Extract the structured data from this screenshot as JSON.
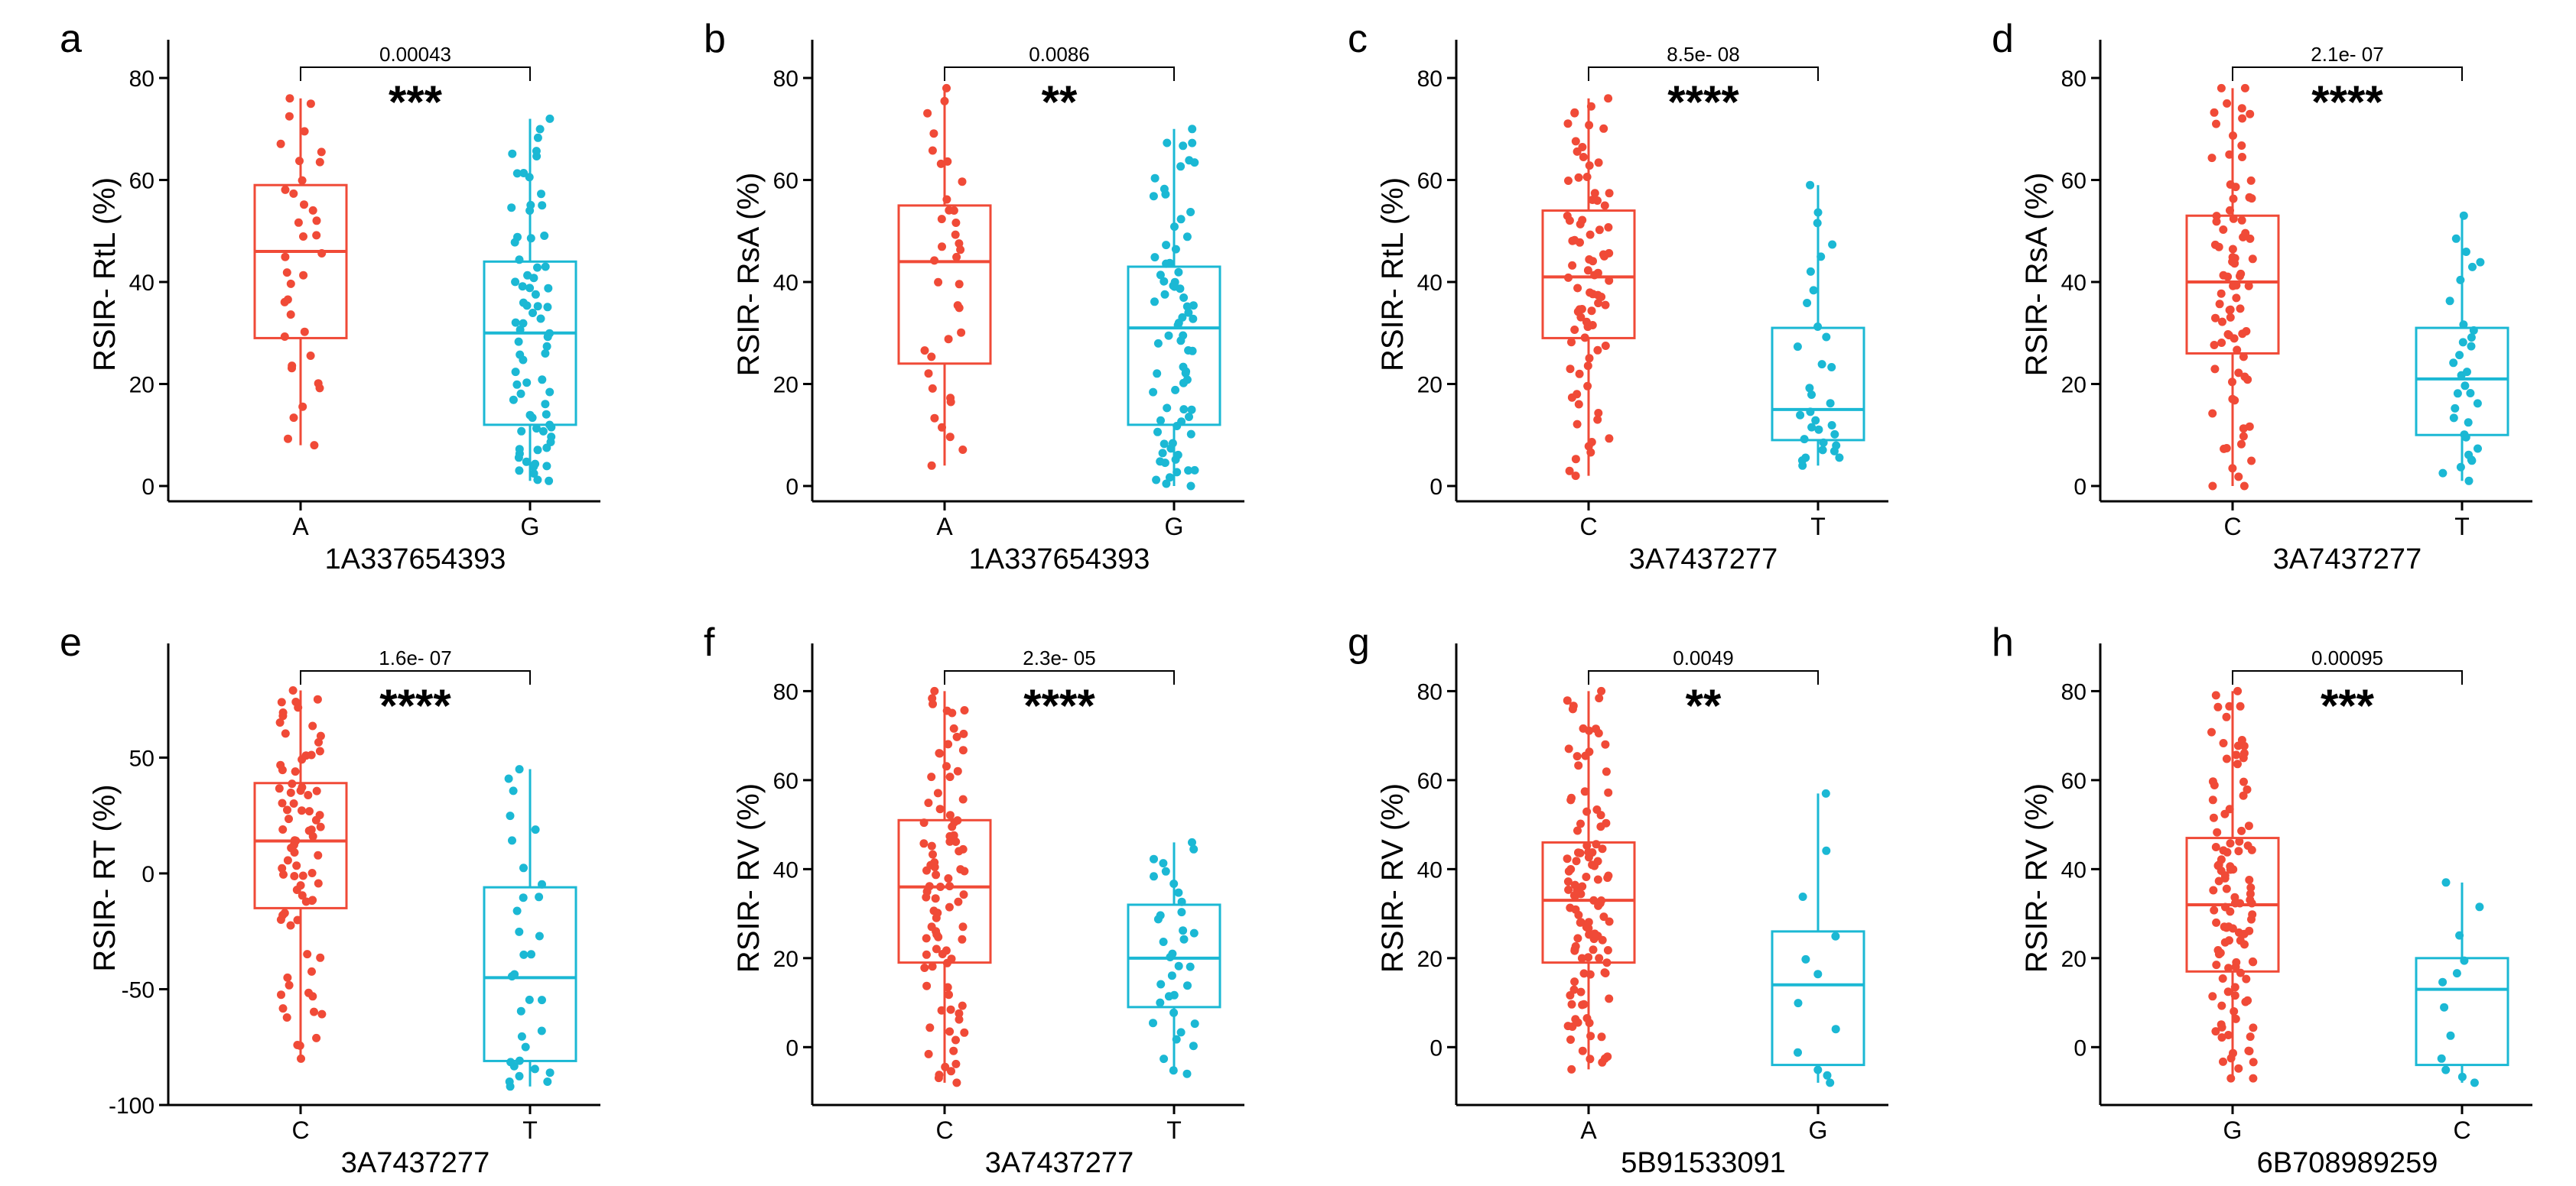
{
  "colors": {
    "group1": "#f04a37",
    "group2": "#1bb8d4",
    "axis": "#000000"
  },
  "chart_data": [
    {
      "type": "box",
      "panel": "a",
      "xlabel": "1A337654393",
      "ylabel": "RSIR- RtL (%)",
      "ylim": [
        -3,
        86
      ],
      "yticks": [
        "0",
        "20",
        "40",
        "60",
        "80"
      ],
      "ytick_values": [
        0,
        20,
        40,
        60,
        80
      ],
      "categories": [
        "A",
        "G"
      ],
      "pvalue": "0.00043",
      "stars": "***",
      "groups": [
        {
          "name": "A",
          "min": 8,
          "q1": 29,
          "median": 46,
          "q3": 59,
          "max": 76,
          "n": 36
        },
        {
          "name": "G",
          "min": 1,
          "q1": 12,
          "median": 30,
          "q3": 44,
          "max": 72,
          "n": 75
        }
      ]
    },
    {
      "type": "box",
      "panel": "b",
      "xlabel": "1A337654393",
      "ylabel": "RSIR- RsA (%)",
      "ylim": [
        -3,
        86
      ],
      "yticks": [
        "0",
        "20",
        "40",
        "60",
        "80"
      ],
      "ytick_values": [
        0,
        20,
        40,
        60,
        80
      ],
      "categories": [
        "A",
        "G"
      ],
      "pvalue": "0.0086",
      "stars": "**",
      "groups": [
        {
          "name": "A",
          "min": 4,
          "q1": 24,
          "median": 44,
          "q3": 55,
          "max": 78,
          "n": 36
        },
        {
          "name": "G",
          "min": 0,
          "q1": 12,
          "median": 31,
          "q3": 43,
          "max": 70,
          "n": 75
        }
      ]
    },
    {
      "type": "box",
      "panel": "c",
      "xlabel": "3A7437277",
      "ylabel": "RSIR- RtL (%)",
      "ylim": [
        -3,
        86
      ],
      "yticks": [
        "0",
        "20",
        "40",
        "60",
        "80"
      ],
      "ytick_values": [
        0,
        20,
        40,
        60,
        80
      ],
      "categories": [
        "C",
        "T"
      ],
      "pvalue": "8.5e- 08",
      "stars": "****",
      "groups": [
        {
          "name": "C",
          "min": 2,
          "q1": 29,
          "median": 41,
          "q3": 54,
          "max": 76,
          "n": 80
        },
        {
          "name": "T",
          "min": 4,
          "q1": 9,
          "median": 15,
          "q3": 31,
          "max": 59,
          "n": 32
        }
      ]
    },
    {
      "type": "box",
      "panel": "d",
      "xlabel": "3A7437277",
      "ylabel": "RSIR- RsA (%)",
      "ylim": [
        -3,
        86
      ],
      "yticks": [
        "0",
        "20",
        "40",
        "60",
        "80"
      ],
      "ytick_values": [
        0,
        20,
        40,
        60,
        80
      ],
      "categories": [
        "C",
        "T"
      ],
      "pvalue": "2.1e- 07",
      "stars": "****",
      "groups": [
        {
          "name": "C",
          "min": 0,
          "q1": 26,
          "median": 40,
          "q3": 53,
          "max": 78,
          "n": 80
        },
        {
          "name": "T",
          "min": 1,
          "q1": 10,
          "median": 21,
          "q3": 31,
          "max": 53,
          "n": 32
        }
      ]
    },
    {
      "type": "box",
      "panel": "e",
      "xlabel": "3A7437277",
      "ylabel": "RSIR- RT (%)",
      "ylim": [
        -100,
        96
      ],
      "yticks": [
        "-100",
        "-50",
        "0",
        "50"
      ],
      "ytick_values": [
        -100,
        -50,
        0,
        50
      ],
      "categories": [
        "C",
        "T"
      ],
      "pvalue": "1.6e- 07",
      "stars": "****",
      "groups": [
        {
          "name": "C",
          "min": -80,
          "q1": -15,
          "median": 14,
          "q3": 39,
          "max": 79,
          "n": 80
        },
        {
          "name": "T",
          "min": -92,
          "q1": -81,
          "median": -45,
          "q3": -6,
          "max": 45,
          "n": 32
        }
      ]
    },
    {
      "type": "box",
      "panel": "f",
      "xlabel": "3A7437277",
      "ylabel": "RSIR- RV (%)",
      "ylim": [
        -13,
        89
      ],
      "yticks": [
        "0",
        "20",
        "40",
        "60",
        "80"
      ],
      "ytick_values": [
        0,
        20,
        40,
        60,
        80
      ],
      "categories": [
        "C",
        "T"
      ],
      "pvalue": "2.3e- 05",
      "stars": "****",
      "groups": [
        {
          "name": "C",
          "min": -8,
          "q1": 19,
          "median": 36,
          "q3": 51,
          "max": 80,
          "n": 90
        },
        {
          "name": "T",
          "min": -6,
          "q1": 9,
          "median": 20,
          "q3": 32,
          "max": 46,
          "n": 35
        }
      ]
    },
    {
      "type": "box",
      "panel": "g",
      "xlabel": "5B91533091",
      "ylabel": "RSIR- RV (%)",
      "ylim": [
        -13,
        89
      ],
      "yticks": [
        "0",
        "20",
        "40",
        "60",
        "80"
      ],
      "ytick_values": [
        0,
        20,
        40,
        60,
        80
      ],
      "categories": [
        "A",
        "G"
      ],
      "pvalue": "0.0049",
      "stars": "**",
      "groups": [
        {
          "name": "A",
          "min": -5,
          "q1": 19,
          "median": 33,
          "q3": 46,
          "max": 80,
          "n": 110
        },
        {
          "name": "G",
          "min": -8,
          "q1": -4,
          "median": 14,
          "q3": 26,
          "max": 57,
          "n": 12
        }
      ]
    },
    {
      "type": "box",
      "panel": "h",
      "xlabel": "6B708989259",
      "ylabel": "RSIR- RV (%)",
      "ylim": [
        -13,
        89
      ],
      "yticks": [
        "0",
        "20",
        "40",
        "60",
        "80"
      ],
      "ytick_values": [
        0,
        20,
        40,
        60,
        80
      ],
      "categories": [
        "G",
        "C"
      ],
      "pvalue": "0.00095",
      "stars": "***",
      "groups": [
        {
          "name": "G",
          "min": -7,
          "q1": 17,
          "median": 32,
          "q3": 47,
          "max": 80,
          "n": 110
        },
        {
          "name": "C",
          "min": -8,
          "q1": -4,
          "median": 13,
          "q3": 20,
          "max": 37,
          "n": 12
        }
      ]
    }
  ]
}
